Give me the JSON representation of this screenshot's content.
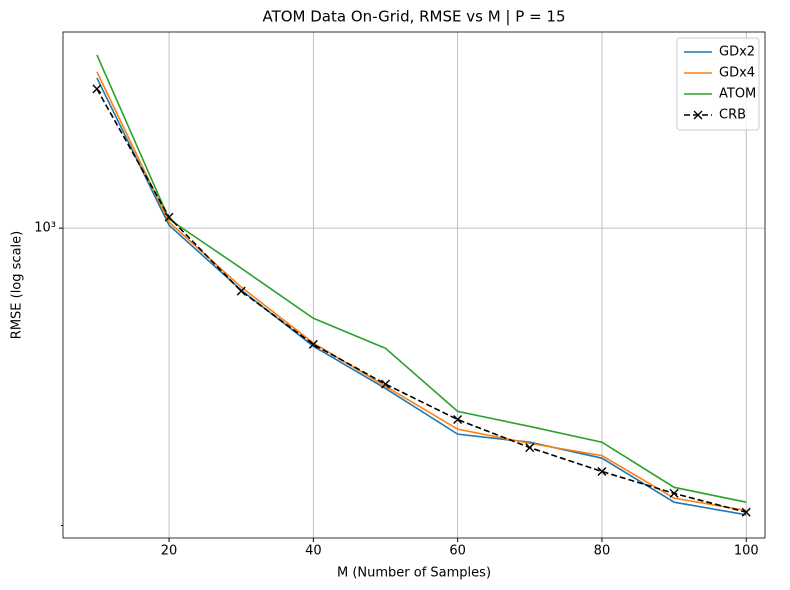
{
  "chart_data": {
    "type": "line",
    "title": "ATOM Data On-Grid, RMSE vs M | P = 15",
    "xlabel": "M (Number of Samples)",
    "ylabel": "RMSE (log scale)",
    "x": [
      10,
      20,
      30,
      40,
      50,
      60,
      70,
      80,
      90,
      100
    ],
    "series": [
      {
        "name": "GDx2",
        "color": "#1f77b4",
        "values": [
          2254,
          1016,
          715,
          528,
          420,
          328,
          314,
          288,
          227,
          212
        ]
      },
      {
        "name": "GDx4",
        "color": "#ff7f0e",
        "values": [
          2330,
          1033,
          727,
          537,
          425,
          337,
          312,
          292,
          232,
          217
        ]
      },
      {
        "name": "ATOM",
        "color": "#2ca02c",
        "values": [
          2553,
          1050,
          805,
          614,
          522,
          371,
          342,
          314,
          246,
          227
        ]
      },
      {
        "name": "CRB",
        "color": "#000000",
        "dashed": true,
        "marker": "x",
        "values": [
          2124,
          1061,
          711,
          533,
          430,
          355,
          305,
          268,
          238,
          215
        ]
      }
    ],
    "xlim": [
      5.3,
      102.6
    ],
    "xticks": [
      20,
      40,
      60,
      80,
      100
    ],
    "ylim": [
      187,
      2890
    ],
    "yticks": [
      {
        "value": 1000,
        "label": "10³"
      }
    ],
    "yminorticks": [
      200
    ],
    "ylog": true,
    "grid": true,
    "legend": "upper-right"
  }
}
